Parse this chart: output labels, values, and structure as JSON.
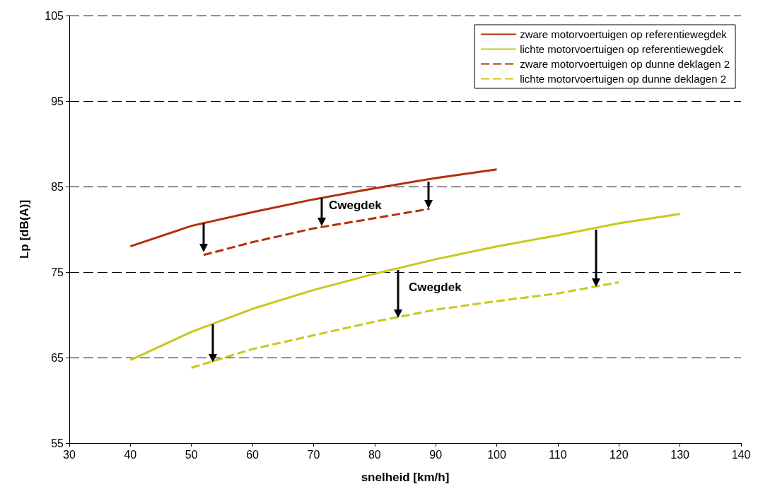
{
  "chart_data": {
    "type": "line",
    "xlabel": "snelheid [km/h]",
    "ylabel": "Lp [dB(A)]",
    "xlim": [
      30,
      140
    ],
    "xticks": [
      30,
      40,
      50,
      60,
      70,
      80,
      90,
      100,
      110,
      120,
      130,
      140
    ],
    "ylim": [
      55,
      105
    ],
    "yticks": [
      55,
      65,
      75,
      85,
      95,
      105
    ],
    "grid": "y",
    "legend": "top right",
    "marker": "none",
    "series": [
      {
        "name": "zware motorvoertuigen op referentiewegdek",
        "color": "#b3300c",
        "line_style": "solid",
        "x": [
          40,
          50,
          60,
          70,
          80,
          90,
          100
        ],
        "values": [
          78,
          80.4,
          82,
          83.5,
          84.8,
          86,
          87
        ]
      },
      {
        "name": "lichte motorvoertuigen op referentiewegdek",
        "color": "#c8c81e",
        "line_style": "solid",
        "x": [
          40,
          50,
          60,
          70,
          80,
          90,
          100,
          110,
          120,
          130
        ],
        "values": [
          64.7,
          68,
          70.7,
          72.9,
          74.8,
          76.5,
          78,
          79.3,
          80.7,
          81.8
        ]
      },
      {
        "name": "zware motorvoertuigen op dunne deklagen 2",
        "color": "#b3300c",
        "line_style": "dashed",
        "x": [
          52,
          60,
          70,
          80,
          89
        ],
        "values": [
          77,
          78.5,
          80.1,
          81.3,
          82.4
        ]
      },
      {
        "name": "lichte motorvoertuigen op dunne deklagen 2",
        "color": "#c8c81e",
        "line_style": "dashed",
        "x": [
          50,
          60,
          70,
          80,
          90,
          100,
          110,
          120
        ],
        "values": [
          63.8,
          66,
          67.6,
          69.2,
          70.6,
          71.6,
          72.5,
          73.8
        ]
      }
    ],
    "annotations": [
      "Cwegdek",
      "Cwegdek"
    ]
  }
}
